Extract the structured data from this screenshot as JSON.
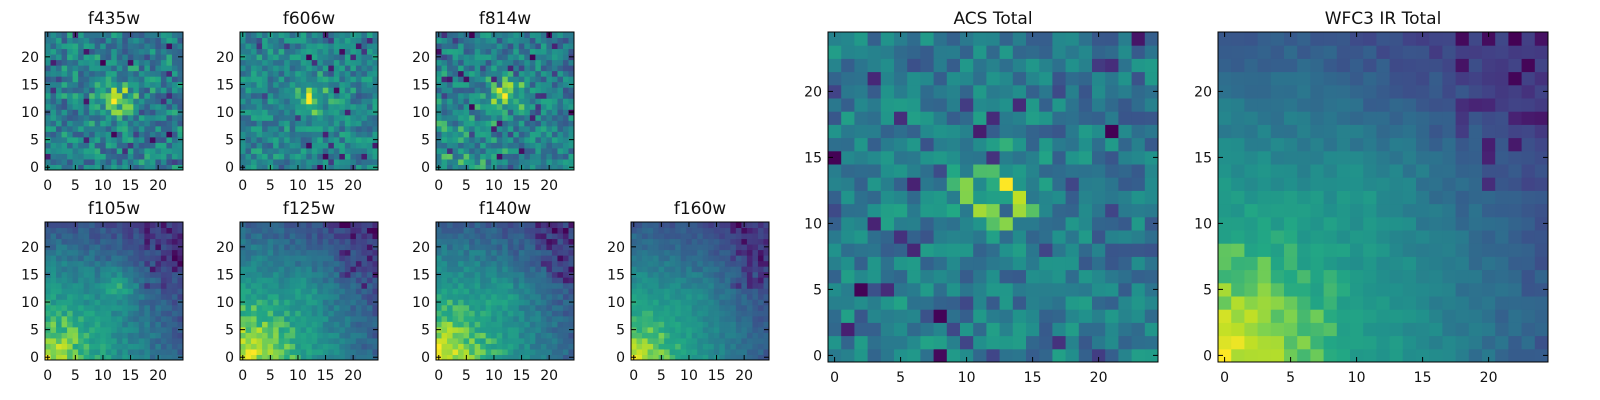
{
  "chart_data": [
    {
      "type": "heatmap",
      "title": "f435w",
      "xticks": [
        0,
        5,
        10,
        15,
        20
      ],
      "yticks": [
        0,
        5,
        10,
        15,
        20
      ],
      "xlim": [
        0,
        25
      ],
      "ylim": [
        0,
        25
      ],
      "grid_size": 25,
      "colormap": "viridis",
      "pattern": "noisy",
      "source": [
        12.5,
        12.5
      ],
      "source_strength": 0.5,
      "glow": [
        0,
        0
      ],
      "glow_strength": 0,
      "base": 0.55,
      "noise": 0.4
    },
    {
      "type": "heatmap",
      "title": "f606w",
      "xticks": [
        0,
        5,
        10,
        15,
        20
      ],
      "yticks": [
        0,
        5,
        10,
        15,
        20
      ],
      "xlim": [
        0,
        25
      ],
      "ylim": [
        0,
        25
      ],
      "grid_size": 25,
      "colormap": "viridis",
      "pattern": "noisy",
      "source": [
        12.5,
        12.5
      ],
      "source_strength": 0.5,
      "glow": [
        0,
        0
      ],
      "glow_strength": 0,
      "base": 0.58,
      "noise": 0.3
    },
    {
      "type": "heatmap",
      "title": "f814w",
      "xticks": [
        0,
        5,
        10,
        15,
        20
      ],
      "yticks": [
        0,
        5,
        10,
        15,
        20
      ],
      "xlim": [
        0,
        25
      ],
      "ylim": [
        0,
        25
      ],
      "grid_size": 25,
      "colormap": "viridis",
      "pattern": "noisy",
      "source": [
        12.5,
        13
      ],
      "source_strength": 0.45,
      "glow": [
        0,
        0
      ],
      "glow_strength": 0.2,
      "base": 0.55,
      "noise": 0.35
    },
    {
      "type": "heatmap",
      "title": "f105w",
      "xticks": [
        0,
        5,
        10,
        15,
        20
      ],
      "yticks": [
        0,
        5,
        10,
        15,
        20
      ],
      "xlim": [
        0,
        25
      ],
      "ylim": [
        0,
        25
      ],
      "grid_size": 25,
      "colormap": "viridis",
      "pattern": "smooth",
      "source": [
        13,
        13
      ],
      "source_strength": 0.3,
      "glow": [
        0,
        0
      ],
      "glow_strength": 1.0,
      "base": 0.15,
      "noise": 0.12
    },
    {
      "type": "heatmap",
      "title": "f125w",
      "xticks": [
        0,
        5,
        10,
        15,
        20
      ],
      "yticks": [
        0,
        5,
        10,
        15,
        20
      ],
      "xlim": [
        0,
        25
      ],
      "ylim": [
        0,
        25
      ],
      "grid_size": 25,
      "colormap": "viridis",
      "pattern": "smooth",
      "source": [
        12,
        12
      ],
      "source_strength": 0.15,
      "glow": [
        0,
        0
      ],
      "glow_strength": 1.0,
      "base": 0.15,
      "noise": 0.12
    },
    {
      "type": "heatmap",
      "title": "f140w",
      "xticks": [
        0,
        5,
        10,
        15,
        20
      ],
      "yticks": [
        0,
        5,
        10,
        15,
        20
      ],
      "xlim": [
        0,
        25
      ],
      "ylim": [
        0,
        25
      ],
      "grid_size": 25,
      "colormap": "viridis",
      "pattern": "smooth",
      "source": [
        12,
        12
      ],
      "source_strength": 0.15,
      "glow": [
        0,
        0
      ],
      "glow_strength": 1.0,
      "base": 0.12,
      "noise": 0.12
    },
    {
      "type": "heatmap",
      "title": "f160w",
      "xticks": [
        0,
        5,
        10,
        15,
        20
      ],
      "yticks": [
        0,
        5,
        10,
        15,
        20
      ],
      "xlim": [
        0,
        25
      ],
      "ylim": [
        0,
        25
      ],
      "grid_size": 25,
      "colormap": "viridis",
      "pattern": "smooth",
      "source": [
        12,
        12
      ],
      "source_strength": 0.08,
      "glow": [
        0,
        0
      ],
      "glow_strength": 1.1,
      "base": 0.08,
      "noise": 0.1
    },
    {
      "type": "heatmap",
      "title": "ACS Total",
      "xticks": [
        0,
        5,
        10,
        15,
        20
      ],
      "yticks": [
        0,
        5,
        10,
        15,
        20
      ],
      "xlim": [
        0,
        25
      ],
      "ylim": [
        0,
        25
      ],
      "grid_size": 25,
      "colormap": "viridis",
      "pattern": "noisy",
      "source": [
        12.5,
        12.5
      ],
      "source_strength": 0.5,
      "glow": [
        0,
        0
      ],
      "glow_strength": 0.1,
      "base": 0.5,
      "noise": 0.3
    },
    {
      "type": "heatmap",
      "title": "WFC3 IR Total",
      "xticks": [
        0,
        5,
        10,
        15,
        20
      ],
      "yticks": [
        0,
        5,
        10,
        15,
        20
      ],
      "xlim": [
        0,
        25
      ],
      "ylim": [
        0,
        25
      ],
      "grid_size": 25,
      "colormap": "viridis",
      "pattern": "smooth",
      "source": [
        12,
        13
      ],
      "source_strength": 0.12,
      "glow": [
        0,
        0
      ],
      "glow_strength": 1.05,
      "base": 0.1,
      "noise": 0.08
    }
  ]
}
